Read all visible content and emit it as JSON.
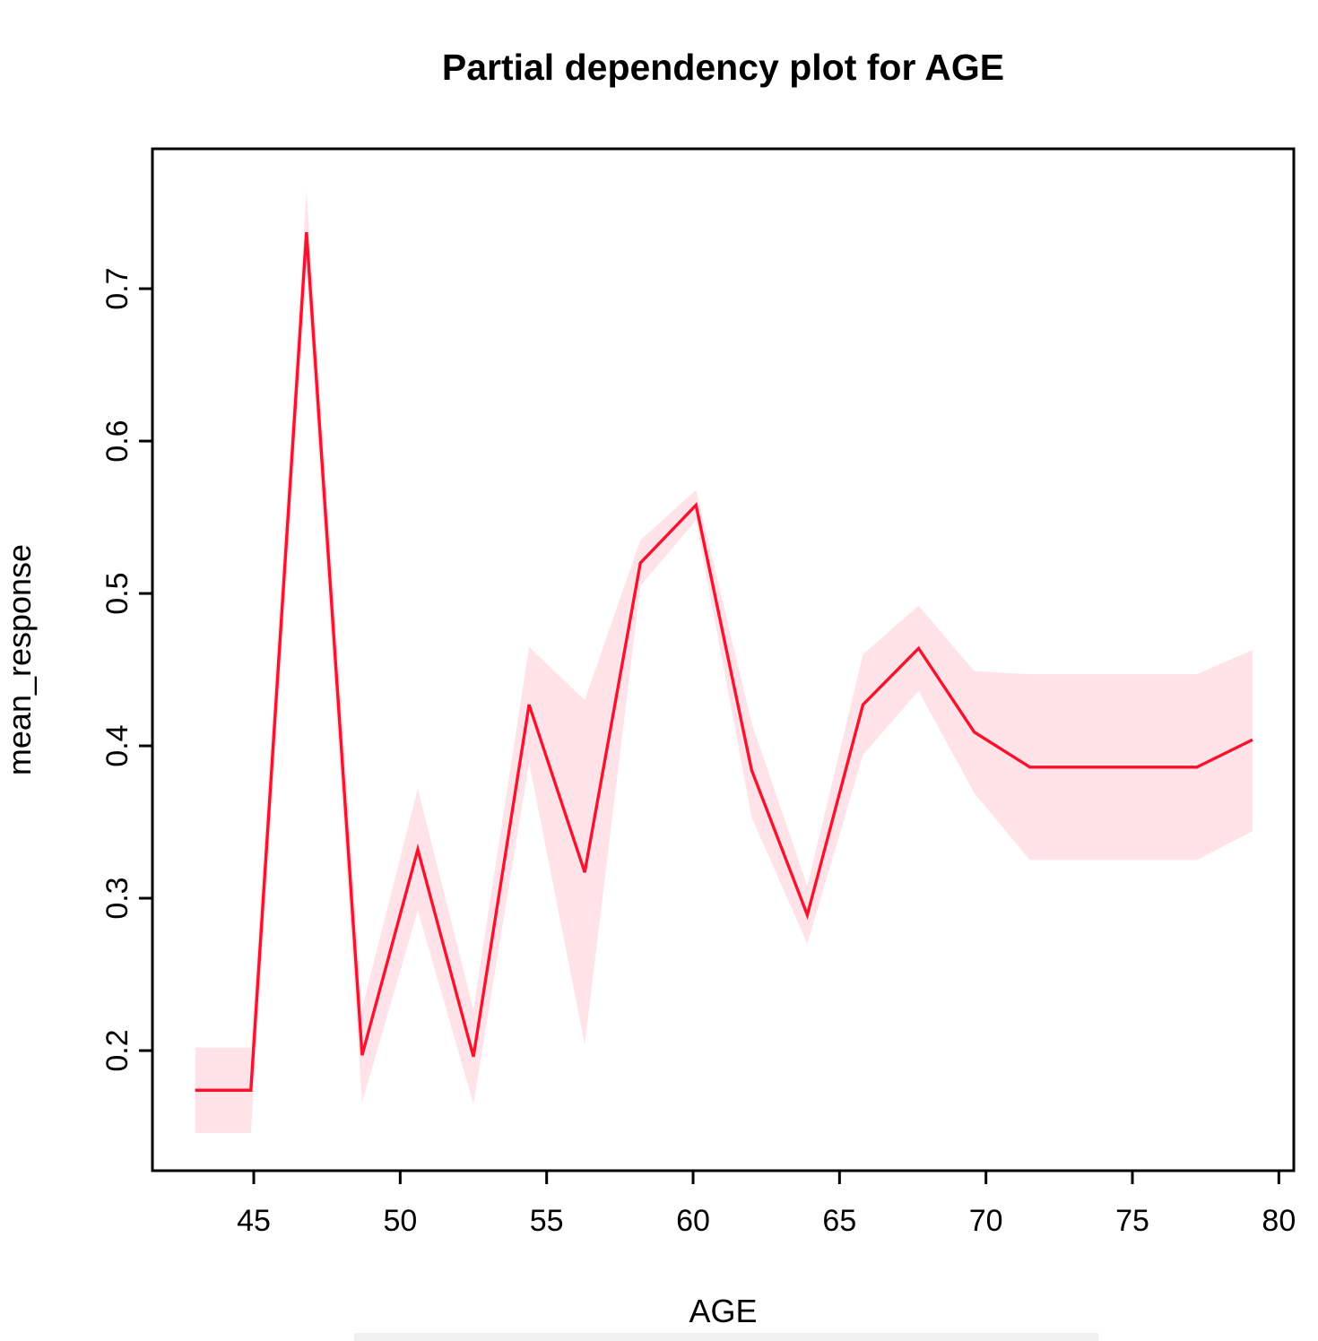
{
  "chart_data": {
    "type": "line",
    "title": "Partial dependency plot for AGE",
    "xlabel": "AGE",
    "ylabel": "mean_response",
    "x_tick_labels": [
      "45",
      "50",
      "55",
      "60",
      "65",
      "70",
      "75",
      "80"
    ],
    "x_tick_values": [
      45,
      50,
      55,
      60,
      65,
      70,
      75,
      80
    ],
    "y_tick_labels": [
      "0.2",
      "0.3",
      "0.4",
      "0.5",
      "0.6",
      "0.7"
    ],
    "y_tick_values": [
      0.2,
      0.3,
      0.4,
      0.5,
      0.6,
      0.7
    ],
    "xlim": [
      41.54,
      80.51
    ],
    "ylim": [
      0.1212,
      0.7918
    ],
    "grid": "off",
    "legend": "none",
    "x": [
      43.0,
      44.9,
      46.8,
      48.7,
      50.6,
      52.5,
      54.4,
      56.3,
      58.2,
      60.1,
      62.0,
      63.9,
      65.8,
      67.7,
      69.6,
      71.5,
      73.4,
      75.3,
      77.2,
      79.1
    ],
    "series": [
      {
        "name": "mean_response",
        "values": [
          0.174,
          0.174,
          0.737,
          0.197,
          0.332,
          0.196,
          0.427,
          0.317,
          0.52,
          0.558,
          0.384,
          0.289,
          0.427,
          0.464,
          0.409,
          0.386,
          0.386,
          0.386,
          0.386,
          0.404
        ]
      },
      {
        "name": "band_lower",
        "values": [
          0.146,
          0.146,
          0.71,
          0.166,
          0.292,
          0.165,
          0.389,
          0.204,
          0.505,
          0.548,
          0.353,
          0.27,
          0.394,
          0.436,
          0.369,
          0.325,
          0.325,
          0.325,
          0.325,
          0.344
        ]
      },
      {
        "name": "band_upper",
        "values": [
          0.202,
          0.202,
          0.764,
          0.228,
          0.372,
          0.227,
          0.465,
          0.43,
          0.535,
          0.568,
          0.415,
          0.308,
          0.46,
          0.492,
          0.449,
          0.447,
          0.447,
          0.447,
          0.447,
          0.463
        ]
      }
    ],
    "colors": {
      "line": "#F8122D",
      "band": "#FFE3E8",
      "axis": "#000000",
      "text": "#000000",
      "background": "#ffffff"
    }
  }
}
